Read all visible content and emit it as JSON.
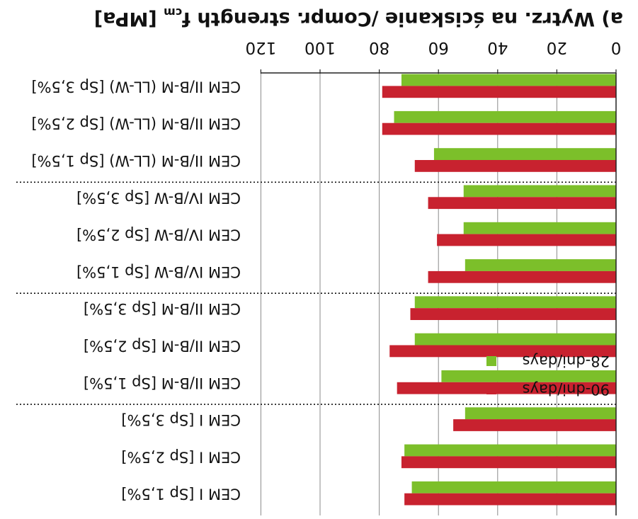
{
  "chart_data": {
    "type": "bar",
    "orientation": "horizontal",
    "title": "a) Wytrz. na ściskanie /Compr. strength f",
    "title_sub": "cm",
    "title_unit": " [MPa]",
    "xlabel": "",
    "ylabel": "",
    "xlim": [
      0,
      120
    ],
    "xticks": [
      0,
      20,
      40,
      60,
      80,
      100,
      120
    ],
    "grid": "vertical",
    "legend_position": "right",
    "categories": [
      "CEM I [Sp 1,5%]",
      "CEM I [Sp 2,5%]",
      "CEM I [Sp 3,5%]",
      "CEM II/B-M [Sp 1,5%]",
      "CEM II/B-M [Sp 2,5%]",
      "CEM II/B-M [Sp 3,5%]",
      "CEM IV/B-W [Sp 1,5%]",
      "CEM IV/B-W [Sp 2,5%]",
      "CEM IV/B-W [Sp 3,5%]",
      "CEM II/B-M (LL-W) [Sp 1,5%]",
      "CEM II/B-M (LL-W) [Sp 2,5%]",
      "CEM II/B-M (LL-W) [Sp 3,5%]"
    ],
    "group_separators_after": [
      2,
      5,
      8
    ],
    "series": [
      {
        "name": "28-dni/days",
        "color": "#7cbf2a",
        "values": [
          69,
          71.5,
          51,
          59,
          68,
          68,
          51,
          51.5,
          51.5,
          61.5,
          75,
          72.5
        ]
      },
      {
        "name": "90-dni/days",
        "color": "#c8222f",
        "values": [
          71.5,
          72.5,
          55,
          74,
          76.5,
          69.5,
          63.5,
          60.5,
          63.5,
          68,
          79,
          79
        ]
      }
    ]
  }
}
